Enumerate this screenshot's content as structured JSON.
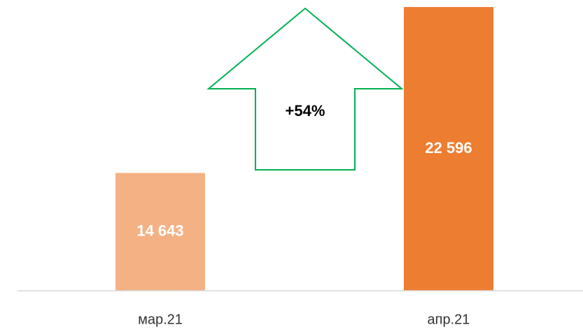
{
  "chart_data": {
    "type": "bar",
    "categories": [
      "мар.21",
      "апр.21"
    ],
    "values": [
      14643,
      22596
    ],
    "value_labels": [
      "14 643",
      "22 596"
    ],
    "colors": [
      "#f4b183",
      "#ed7d31"
    ],
    "annotation": "+54%",
    "ylim": [
      9000,
      23000
    ]
  }
}
